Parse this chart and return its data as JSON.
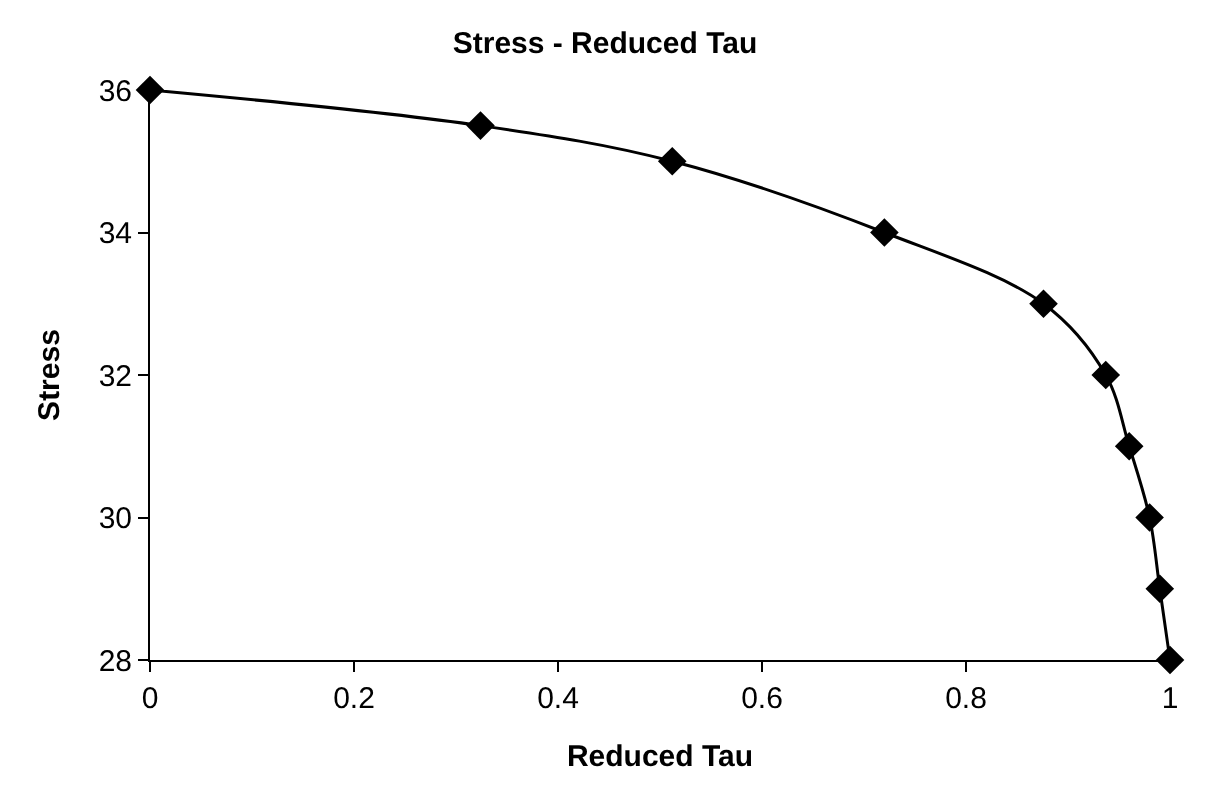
{
  "chart_data": {
    "type": "line",
    "title": "Stress - Reduced Tau",
    "xlabel": "Reduced Tau",
    "ylabel": "Stress",
    "x": [
      0,
      0.324,
      0.512,
      0.72,
      0.876,
      0.937,
      0.96,
      0.98,
      0.99,
      1.0
    ],
    "series": [
      {
        "color": "#000000",
        "values": [
          36,
          35.5,
          35,
          34,
          33,
          32,
          31,
          30,
          29,
          28
        ]
      }
    ],
    "xlim": [
      0,
      1
    ],
    "xticks": [
      0,
      0.2,
      0.4,
      0.6,
      0.8,
      1
    ],
    "ylim": [
      28,
      36
    ],
    "yticks": [
      28,
      30,
      32,
      34,
      36
    ],
    "legend": false,
    "marker": "diamond",
    "line_style": "solid"
  }
}
